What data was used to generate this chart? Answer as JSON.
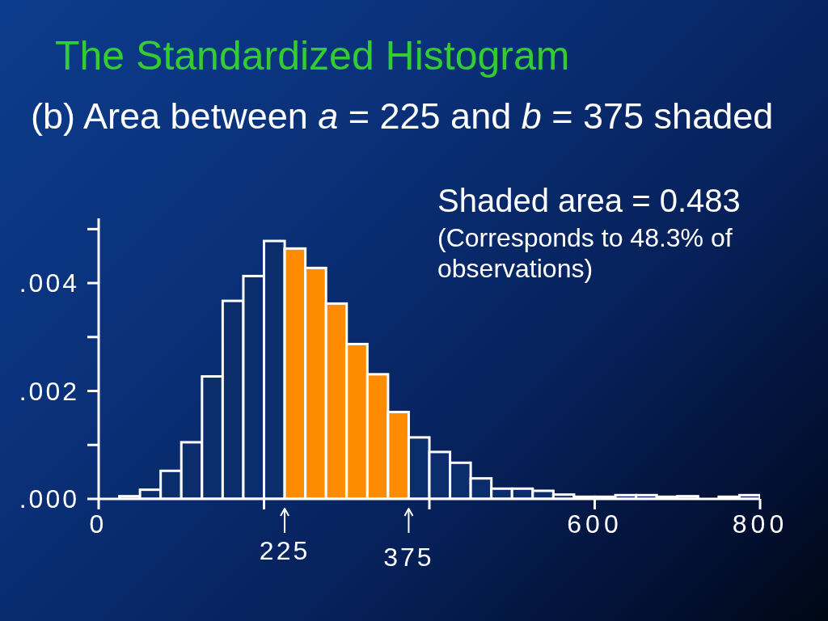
{
  "chart_data": {
    "type": "histogram",
    "title": "The Standardized Histogram",
    "subtitle": "(b) Area between a = 225 and b = 375 shaded",
    "bins": [
      25,
      50,
      75,
      100,
      125,
      150,
      175,
      200,
      225,
      250,
      275,
      300,
      325,
      350,
      375,
      400,
      425,
      450,
      475,
      500,
      525,
      550,
      575,
      600,
      625,
      650,
      675,
      700,
      725,
      750,
      775,
      800
    ],
    "values": [
      5e-05,
      0.00017,
      0.00052,
      0.00105,
      0.00227,
      0.00367,
      0.00413,
      0.00478,
      0.00464,
      0.00428,
      0.00362,
      0.00287,
      0.00231,
      0.00161,
      0.00114,
      0.00087,
      0.00067,
      0.00038,
      0.00019,
      0.00019,
      0.00015,
      8e-05,
      4e-05,
      4e-05,
      7e-05,
      7e-05,
      4e-05,
      5e-05,
      0,
      4e-05,
      7e-05
    ],
    "colors": [
      "#0b2d6b",
      "#0b2d6b",
      "#0b2d6b",
      "#0b2d6b",
      "#0b2d6b",
      "#0b2d6b",
      "#0b2d6b",
      "#0b2d6b",
      "#ff8c00",
      "#ff8c00",
      "#ff8c00",
      "#ff8c00",
      "#ff8c00",
      "#ff8c00",
      "#0b2d6b",
      "#0b2d6b",
      "#0b2d6b",
      "#0b2d6b",
      "#0b2d6b",
      "#0b2d6b",
      "#0b2d6b",
      "#0b2d6b",
      "#0b2d6b",
      "#0b2d6b",
      "#0b2d6b",
      "#0b2d6b",
      "#0b2d6b",
      "#0b2d6b",
      "#0b2d6b",
      "#0b2d6b",
      "#0b2d6b"
    ],
    "xlim": [
      0,
      800
    ],
    "xticks": [
      0,
      {
        "value": 200,
        "label": null
      },
      {
        "value": 400,
        "label": null
      },
      600,
      800
    ],
    "ylim": [
      0,
      0.0052
    ],
    "yticks": [
      {
        "value": 0,
        "label": ".000"
      },
      {
        "value": 0.001,
        "label": null
      },
      {
        "value": 0.002,
        "label": ".002"
      },
      {
        "value": 0.003,
        "label": null
      },
      {
        "value": 0.004,
        "label": ".004"
      },
      {
        "value": 0.005,
        "label": null
      }
    ],
    "annotations": [
      "Shaded area = 0.483",
      "(Corresponds to 48.3% of observations)",
      {
        "text": "225",
        "x": 225,
        "y": 0
      },
      {
        "text": "375",
        "x": 375,
        "y": 0
      }
    ]
  }
}
